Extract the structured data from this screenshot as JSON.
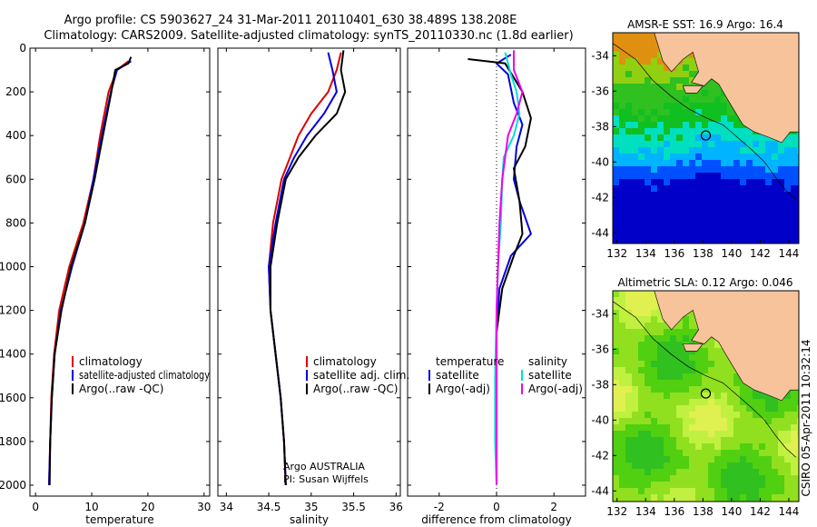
{
  "header": {
    "line1": "Argo profile: CS 5903627_24 31-Mar-2011 20110401_630 38.489S 138.208E",
    "line2": "Climatology: CARS2009. Satellite-adjusted climatology: synTS_20110330.nc (1.8d earlier)"
  },
  "side_text": "CSIRO 05-Apr-2011 10:32:14",
  "colors": {
    "climatology": "#dd0000",
    "satellite": "#0000dd",
    "argo": "#000000",
    "satellite_salinity": "#00dddd",
    "argo_salinity": "#ee00ee",
    "land": "#f7c39a"
  },
  "chart_data": [
    {
      "type": "line",
      "xlabel": "temperature",
      "ylabel": "",
      "xlim": [
        -1,
        31
      ],
      "ylim": [
        2050,
        0
      ],
      "yticks": [
        0,
        200,
        400,
        600,
        800,
        1000,
        1200,
        1400,
        1600,
        1800,
        2000
      ],
      "xticks": [
        0,
        10,
        20,
        30
      ],
      "legend": [
        "climatology",
        "satellite-adjusted climatology",
        "Argo(..raw -QC)"
      ],
      "series": [
        {
          "name": "climatology",
          "color_key": "climatology",
          "points": [
            [
              16.5,
              60
            ],
            [
              14.5,
              100
            ],
            [
              13,
              200
            ],
            [
              11.5,
              400
            ],
            [
              10.3,
              600
            ],
            [
              8.5,
              800
            ],
            [
              6,
              1000
            ],
            [
              4.2,
              1200
            ],
            [
              3.3,
              1400
            ],
            [
              2.8,
              1600
            ],
            [
              2.6,
              1800
            ],
            [
              2.4,
              2000
            ]
          ]
        },
        {
          "name": "satellite-adjusted climatology",
          "color_key": "satellite",
          "points": [
            [
              17,
              60
            ],
            [
              14.5,
              100
            ],
            [
              13.4,
              200
            ],
            [
              11.8,
              400
            ],
            [
              10.3,
              600
            ],
            [
              8.8,
              800
            ],
            [
              6.5,
              1000
            ],
            [
              4.5,
              1200
            ],
            [
              3.4,
              1400
            ],
            [
              2.9,
              1600
            ],
            [
              2.6,
              1800
            ],
            [
              2.4,
              2000
            ]
          ]
        },
        {
          "name": "Argo(..raw -QC)",
          "color_key": "argo",
          "points": [
            [
              17,
              40
            ],
            [
              16.5,
              70
            ],
            [
              14.2,
              100
            ],
            [
              13.5,
              200
            ],
            [
              12,
              400
            ],
            [
              10.5,
              600
            ],
            [
              8.8,
              800
            ],
            [
              6.3,
              1000
            ],
            [
              4.6,
              1200
            ],
            [
              3.4,
              1400
            ],
            [
              2.9,
              1600
            ],
            [
              2.6,
              1800
            ],
            [
              2.5,
              2000
            ]
          ]
        }
      ]
    },
    {
      "type": "line",
      "xlabel": "salinity",
      "ylabel": "",
      "xlim": [
        33.9,
        36.05
      ],
      "ylim": [
        2050,
        0
      ],
      "yticks": [
        0,
        200,
        400,
        600,
        800,
        1000,
        1200,
        1400,
        1600,
        1800,
        2000
      ],
      "xticks": [
        34,
        34.5,
        35,
        35.5,
        36
      ],
      "legend": [
        "climatology",
        "satellite adj. clim.",
        "Argo(..raw -QC)"
      ],
      "annotation": [
        "Argo AUSTRALIA",
        "PI: Susan Wijffels"
      ],
      "series": [
        {
          "name": "climatology",
          "color_key": "climatology",
          "points": [
            [
              35.35,
              20
            ],
            [
              35.3,
              100
            ],
            [
              35.2,
              200
            ],
            [
              35.0,
              300
            ],
            [
              34.85,
              400
            ],
            [
              34.75,
              500
            ],
            [
              34.65,
              600
            ],
            [
              34.55,
              800
            ],
            [
              34.5,
              1000
            ],
            [
              34.52,
              1200
            ],
            [
              34.58,
              1400
            ],
            [
              34.64,
              1600
            ],
            [
              34.68,
              1800
            ],
            [
              34.7,
              2000
            ]
          ]
        },
        {
          "name": "satellite adj. clim.",
          "color_key": "satellite",
          "points": [
            [
              35.2,
              20
            ],
            [
              35.25,
              100
            ],
            [
              35.3,
              200
            ],
            [
              35.15,
              300
            ],
            [
              34.95,
              400
            ],
            [
              34.8,
              500
            ],
            [
              34.68,
              600
            ],
            [
              34.58,
              800
            ],
            [
              34.5,
              1000
            ],
            [
              34.52,
              1200
            ],
            [
              34.58,
              1400
            ],
            [
              34.64,
              1600
            ],
            [
              34.68,
              1800
            ],
            [
              34.7,
              2000
            ]
          ]
        },
        {
          "name": "Argo(..raw -QC)",
          "color_key": "argo",
          "points": [
            [
              35.38,
              10
            ],
            [
              35.35,
              100
            ],
            [
              35.4,
              200
            ],
            [
              35.3,
              300
            ],
            [
              35.05,
              400
            ],
            [
              34.85,
              500
            ],
            [
              34.7,
              600
            ],
            [
              34.6,
              800
            ],
            [
              34.52,
              1000
            ],
            [
              34.52,
              1200
            ],
            [
              34.58,
              1400
            ],
            [
              34.64,
              1600
            ],
            [
              34.68,
              1800
            ],
            [
              34.7,
              2000
            ]
          ]
        }
      ]
    },
    {
      "type": "line",
      "xlabel": "difference from climatology",
      "ylabel": "",
      "xlim": [
        -3.1,
        3.1
      ],
      "ylim": [
        2050,
        0
      ],
      "yticks": [
        0,
        200,
        400,
        600,
        800,
        1000,
        1200,
        1400,
        1600,
        1800,
        2000
      ],
      "xticks": [
        -2,
        0,
        2
      ],
      "legend_headers": [
        "temperature",
        "salinity"
      ],
      "legend": [
        "satellite",
        "Argo(-adj)",
        "satellite",
        "Argo(-adj)"
      ],
      "series": [
        {
          "name": "satellite",
          "color_key": "satellite",
          "points": [
            [
              0.5,
              30
            ],
            [
              0,
              70
            ],
            [
              0.4,
              120
            ],
            [
              0.6,
              250
            ],
            [
              0.9,
              350
            ],
            [
              0.7,
              450
            ],
            [
              0.6,
              600
            ],
            [
              0.8,
              700
            ],
            [
              1.2,
              850
            ],
            [
              0.5,
              950
            ],
            [
              0.1,
              1100
            ],
            [
              0,
              1300
            ],
            [
              0,
              1600
            ],
            [
              0,
              1800
            ],
            [
              0,
              2000
            ]
          ]
        },
        {
          "name": "Argo(-adj)",
          "color_key": "argo",
          "points": [
            [
              -1,
              50
            ],
            [
              0.3,
              70
            ],
            [
              0.9,
              200
            ],
            [
              1.2,
              320
            ],
            [
              1.0,
              450
            ],
            [
              0.6,
              550
            ],
            [
              0.8,
              700
            ],
            [
              0.9,
              850
            ],
            [
              0.6,
              950
            ],
            [
              0.2,
              1100
            ],
            [
              0,
              1300
            ],
            [
              0,
              1600
            ],
            [
              0,
              1800
            ],
            [
              0,
              2000
            ]
          ]
        },
        {
          "name": "satellite",
          "color_key": "satellite_salinity",
          "points": [
            [
              0.3,
              20
            ],
            [
              0.5,
              120
            ],
            [
              0.7,
              200
            ],
            [
              0.8,
              300
            ],
            [
              0.6,
              400
            ],
            [
              0.25,
              500
            ],
            [
              0.2,
              600
            ],
            [
              0.15,
              800
            ],
            [
              0.05,
              1000
            ],
            [
              0,
              1200
            ],
            [
              -0.05,
              1500
            ],
            [
              -0.05,
              1800
            ],
            [
              0,
              2000
            ]
          ]
        },
        {
          "name": "Argo(-adj)",
          "color_key": "argo_salinity",
          "points": [
            [
              0.6,
              10
            ],
            [
              0.6,
              100
            ],
            [
              0.9,
              200
            ],
            [
              0.7,
              300
            ],
            [
              0.4,
              400
            ],
            [
              0.2,
              600
            ],
            [
              0.1,
              800
            ],
            [
              0.05,
              1000
            ],
            [
              0,
              1200
            ],
            [
              0,
              1500
            ],
            [
              0,
              1800
            ],
            [
              0,
              2000
            ]
          ]
        }
      ]
    },
    {
      "type": "heatmap",
      "title": "AMSR-E SST: 16.9 Argo: 16.4",
      "xlim": [
        131.7,
        144.7
      ],
      "ylim": [
        -44.6,
        -32.7
      ],
      "xticks": [
        132,
        134,
        136,
        138,
        140,
        142,
        144
      ],
      "yticks": [
        -34,
        -36,
        -38,
        -40,
        -42,
        -44
      ],
      "marker": [
        138.2,
        -38.5
      ]
    },
    {
      "type": "heatmap",
      "title": "Altimetric SLA: 0.12 Argo: 0.046",
      "xlim": [
        131.7,
        144.7
      ],
      "ylim": [
        -44.6,
        -32.7
      ],
      "xticks": [
        132,
        134,
        136,
        138,
        140,
        142,
        144
      ],
      "yticks": [
        -34,
        -36,
        -38,
        -40,
        -42,
        -44
      ],
      "marker": [
        138.2,
        -38.5
      ]
    }
  ]
}
